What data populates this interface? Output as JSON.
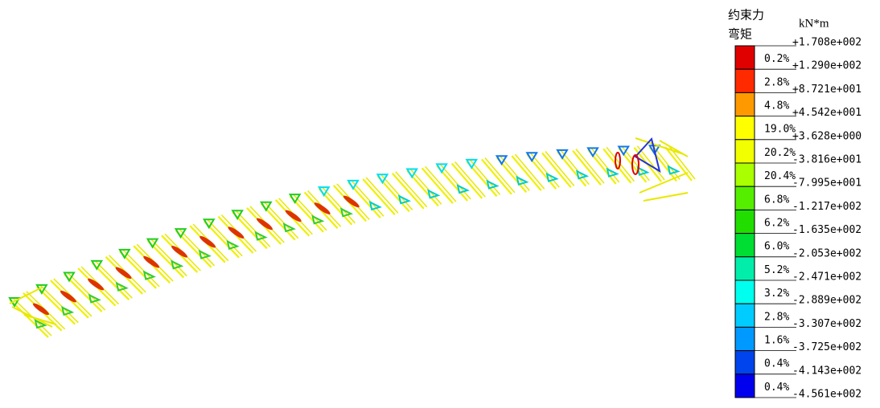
{
  "legend": {
    "title_lines": [
      "约束力",
      "弯矩"
    ],
    "unit": "kN*m",
    "levels": [
      "+1.708e+002",
      "+1.290e+002",
      "+8.721e+001",
      "+4.542e+001",
      "+3.628e+000",
      "-3.816e+001",
      "-7.995e+001",
      "-1.217e+002",
      "-1.635e+002",
      "-2.053e+002",
      "-2.471e+002",
      "-2.889e+002",
      "-3.307e+002",
      "-3.725e+002",
      "-4.143e+002",
      "-4.561e+002"
    ],
    "bands": [
      {
        "color": "#e00000",
        "percent": "0.2%"
      },
      {
        "color": "#ff2a00",
        "percent": "2.8%"
      },
      {
        "color": "#ff9900",
        "percent": "4.8%"
      },
      {
        "color": "#ffff00",
        "percent": "19.0%"
      },
      {
        "color": "#f2ff00",
        "percent": "20.2%"
      },
      {
        "color": "#aaff00",
        "percent": "20.4%"
      },
      {
        "color": "#55ee00",
        "percent": "6.8%"
      },
      {
        "color": "#22dd00",
        "percent": "6.2%"
      },
      {
        "color": "#00dd33",
        "percent": "6.0%"
      },
      {
        "color": "#00eeaa",
        "percent": "5.2%"
      },
      {
        "color": "#00ffee",
        "percent": "3.2%"
      },
      {
        "color": "#00ccff",
        "percent": "2.8%"
      },
      {
        "color": "#0099ff",
        "percent": "1.6%"
      },
      {
        "color": "#0044ee",
        "percent": "0.4%"
      },
      {
        "color": "#0000ee",
        "percent": "0.4%"
      }
    ]
  }
}
